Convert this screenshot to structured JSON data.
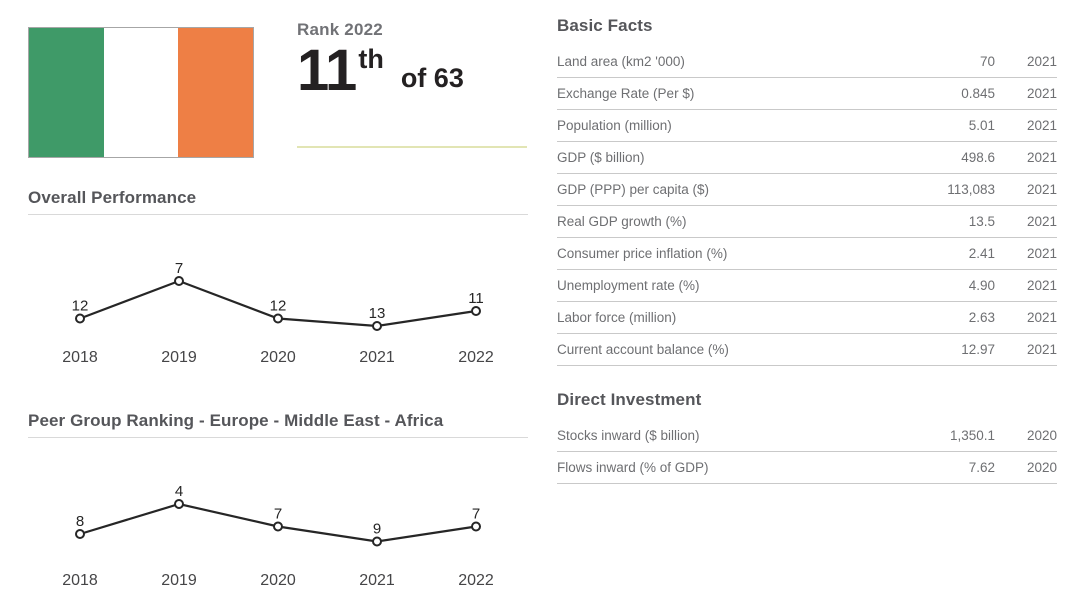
{
  "rank_panel": {
    "flag_name": "Ireland flag",
    "flag_colors": {
      "green": "#3f9a68",
      "white": "#ffffff",
      "orange": "#ee7f45"
    },
    "rank_label": "Rank 2022",
    "rank_number": "11",
    "rank_suffix": "th",
    "rank_of": "of 63"
  },
  "chart_data": [
    {
      "type": "line",
      "title": "Overall Performance",
      "categories": [
        "2018",
        "2019",
        "2020",
        "2021",
        "2022"
      ],
      "values": [
        12,
        7,
        12,
        13,
        11
      ],
      "xlabel": "",
      "ylabel": "",
      "legend": "none",
      "grid": false,
      "note": "ranking chart - lower rank number plotted higher, open circle markers with value labels above points"
    },
    {
      "type": "line",
      "title": "Peer Group Ranking - Europe - Middle East - Africa",
      "categories": [
        "2018",
        "2019",
        "2020",
        "2021",
        "2022"
      ],
      "values": [
        8,
        4,
        7,
        9,
        7
      ],
      "xlabel": "",
      "ylabel": "",
      "legend": "none",
      "grid": false,
      "note": "ranking chart - lower rank number plotted higher, open circle markers with value labels above points"
    }
  ],
  "tables": [
    {
      "title": "Basic Facts",
      "rows": [
        {
          "label": "Land area (km2 '000)",
          "value": "70",
          "year": "2021"
        },
        {
          "label": "Exchange Rate (Per $)",
          "value": "0.845",
          "year": "2021"
        },
        {
          "label": "Population (million)",
          "value": "5.01",
          "year": "2021"
        },
        {
          "label": "GDP ($ billion)",
          "value": "498.6",
          "year": "2021"
        },
        {
          "label": "GDP (PPP) per capita ($)",
          "value": "113,083",
          "year": "2021"
        },
        {
          "label": "Real GDP growth (%)",
          "value": "13.5",
          "year": "2021"
        },
        {
          "label": "Consumer price inflation (%)",
          "value": "2.41",
          "year": "2021"
        },
        {
          "label": "Unemployment rate (%)",
          "value": "4.90",
          "year": "2021"
        },
        {
          "label": "Labor force (million)",
          "value": "2.63",
          "year": "2021"
        },
        {
          "label": "Current account balance (%)",
          "value": "12.97",
          "year": "2021"
        }
      ]
    },
    {
      "title": "Direct Investment",
      "rows": [
        {
          "label": "Stocks inward ($ billion)",
          "value": "1,350.1",
          "year": "2020"
        },
        {
          "label": "Flows inward (% of GDP)",
          "value": "7.62",
          "year": "2020"
        }
      ]
    }
  ],
  "colors": {
    "heading_text": "#55565a",
    "body_text": "#6e6f72",
    "rank_text": "#242122",
    "rank_label_text": "#717276",
    "rank_divider": "#e2e5b4",
    "section_divider": "#d9d9d9",
    "row_border": "#c9c9c9",
    "chart_line": "#262626"
  }
}
